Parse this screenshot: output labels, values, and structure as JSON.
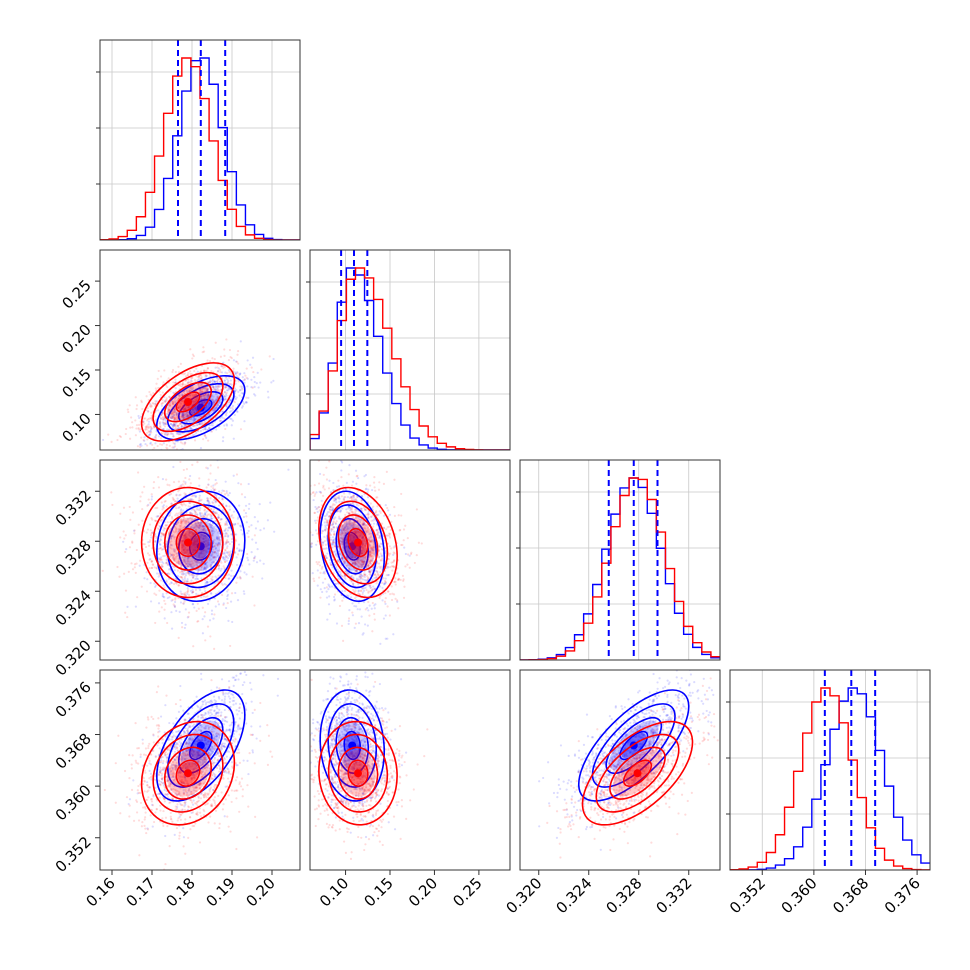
{
  "colors": {
    "series_a": "#0000ff",
    "series_b": "#ff0000",
    "quantile_line": "#0000ff"
  },
  "chart_data": {
    "type": "corner",
    "grid": true,
    "n_params": 4,
    "series": [
      {
        "name": "",
        "color": "#0000ff",
        "mean": [
          0.1822,
          0.1075,
          0.3276,
          0.3663
        ],
        "std": [
          0.0055,
          0.018,
          0.0022,
          0.0043
        ],
        "corr": [
          [
            1,
            0.55,
            0.1,
            0.55
          ],
          [
            0.55,
            1,
            -0.2,
            -0.1
          ],
          [
            0.1,
            -0.2,
            1,
            0.7
          ],
          [
            0.55,
            -0.1,
            0.7,
            1
          ]
        ]
      },
      {
        "name": "",
        "color": "#ff0000",
        "mean": [
          0.179,
          0.114,
          0.3279,
          0.362
        ],
        "std": [
          0.0058,
          0.022,
          0.0022,
          0.004
        ],
        "corr": [
          [
            1,
            0.55,
            0.0,
            0.2
          ],
          [
            0.55,
            1,
            -0.25,
            -0.05
          ],
          [
            0.0,
            -0.25,
            1,
            0.6
          ],
          [
            0.2,
            -0.05,
            0.6,
            1
          ]
        ]
      }
    ],
    "quantile_lines": [
      [
        0.1765,
        0.1822,
        0.1883
      ],
      [
        0.095,
        0.1095,
        0.1245
      ],
      [
        0.3256,
        0.3276,
        0.3295
      ],
      [
        0.3617,
        0.3658,
        0.3695
      ]
    ],
    "ranges": [
      [
        0.157,
        0.207
      ],
      [
        0.06,
        0.285
      ],
      [
        0.3185,
        0.3345
      ],
      [
        0.347,
        0.378
      ]
    ],
    "ticks": [
      [
        "0.16",
        "0.17",
        "0.18",
        "0.19",
        "0.20"
      ],
      [
        "0.10",
        "0.15",
        "0.20",
        "0.25"
      ],
      [
        "0.320",
        "0.324",
        "0.328",
        "0.332"
      ],
      [
        "0.352",
        "0.360",
        "0.368",
        "0.376"
      ]
    ],
    "tick_values": [
      [
        0.16,
        0.17,
        0.18,
        0.19,
        0.2
      ],
      [
        0.1,
        0.15,
        0.2,
        0.25
      ],
      [
        0.32,
        0.324,
        0.328,
        0.332
      ],
      [
        0.352,
        0.36,
        0.368,
        0.376
      ]
    ]
  }
}
